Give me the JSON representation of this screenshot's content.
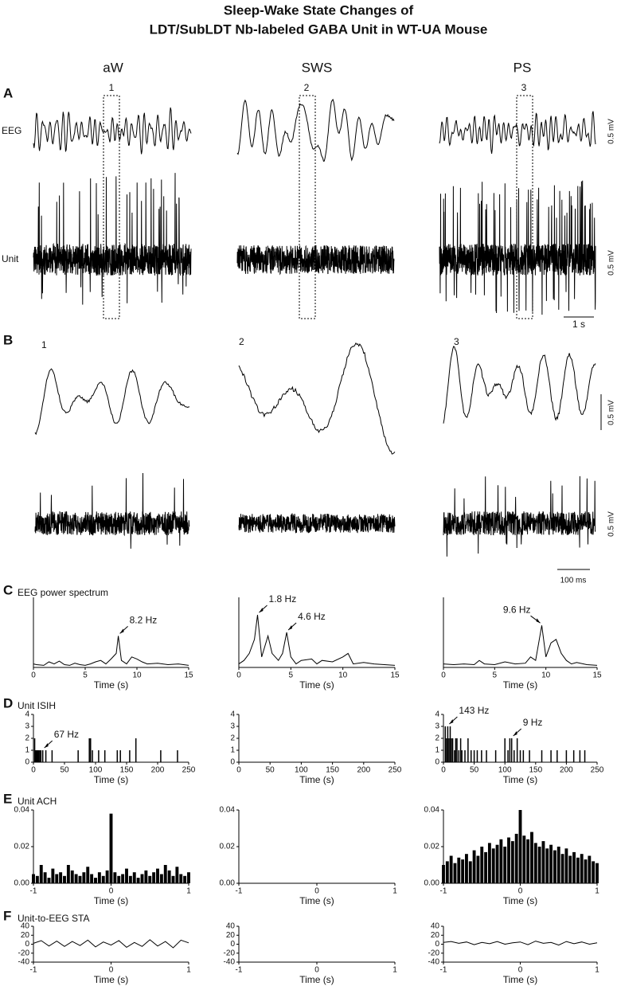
{
  "figure": {
    "title": "Sleep-Wake State Changes of",
    "subtitle": "LDT/SubLDT Nb-labeled GABA Unit in WT-UA Mouse",
    "states": [
      "aW",
      "SWS",
      "PS"
    ],
    "epochs": [
      "1",
      "2",
      "3"
    ],
    "panel_a": {
      "letter": "A",
      "rows": [
        "EEG",
        "Unit"
      ],
      "eeg_scale": "0.5 mV",
      "unit_scale": "0.5 mV",
      "time_scale": "1 s"
    },
    "panel_b": {
      "letter": "B",
      "eeg_scale": "0.5 mV",
      "unit_scale": "0.5 mV",
      "time_scale": "100 ms"
    },
    "row_panels": [
      {
        "letter": "C",
        "title": "EEG power spectrum"
      },
      {
        "letter": "D",
        "title": "Unit ISIH"
      },
      {
        "letter": "E",
        "title": "Unit ACH"
      },
      {
        "letter": "F",
        "title": "Unit-to-EEG STA"
      }
    ]
  },
  "chart_data": [
    {
      "type": "line",
      "color": "#000000",
      "xlabel": "Time (s)",
      "xlim": [
        0,
        15
      ],
      "xticks": [
        0,
        5,
        10,
        15
      ],
      "ylim": [
        0,
        1
      ],
      "x": [
        0,
        0.3,
        1,
        1.5,
        2,
        2.5,
        3,
        3.5,
        4,
        4.5,
        5,
        5.5,
        6,
        6.5,
        7,
        7.5,
        8,
        8.2,
        8.5,
        9,
        9.5,
        10,
        10.5,
        11,
        12,
        13,
        14,
        15
      ],
      "values": [
        0.05,
        0.04,
        0.03,
        0.08,
        0.05,
        0.09,
        0.04,
        0.03,
        0.06,
        0.04,
        0.03,
        0.05,
        0.08,
        0.1,
        0.05,
        0.12,
        0.2,
        0.45,
        0.1,
        0.05,
        0.15,
        0.12,
        0.08,
        0.05,
        0.06,
        0.04,
        0.05,
        0.03
      ],
      "annotations": [
        {
          "text": "8.2 Hz",
          "x": 8.2,
          "y": 0.45
        }
      ]
    },
    {
      "type": "line",
      "color": "#000000",
      "xlabel": "Time (s)",
      "xlim": [
        0,
        15
      ],
      "xticks": [
        0,
        5,
        10,
        15
      ],
      "ylim": [
        0,
        1
      ],
      "x": [
        0,
        0.5,
        1,
        1.5,
        1.8,
        2.2,
        2.8,
        3.2,
        3.8,
        4.2,
        4.6,
        5,
        5.5,
        6,
        7,
        7.5,
        8,
        9,
        10,
        10.5,
        11,
        12,
        13,
        14,
        15
      ],
      "values": [
        0.05,
        0.1,
        0.2,
        0.4,
        0.75,
        0.15,
        0.45,
        0.2,
        0.1,
        0.2,
        0.5,
        0.15,
        0.05,
        0.1,
        0.12,
        0.05,
        0.1,
        0.08,
        0.15,
        0.2,
        0.05,
        0.07,
        0.05,
        0.04,
        0.03
      ],
      "annotations": [
        {
          "text": "1.8 Hz",
          "x": 1.8,
          "y": 0.75
        },
        {
          "text": "4.6 Hz",
          "x": 4.6,
          "y": 0.5
        }
      ]
    },
    {
      "type": "line",
      "color": "#000000",
      "xlabel": "Time (s)",
      "xlim": [
        0,
        15
      ],
      "xticks": [
        0,
        5,
        10,
        15
      ],
      "ylim": [
        0,
        1
      ],
      "x": [
        0,
        1,
        2,
        3,
        3.5,
        4,
        5,
        6,
        7,
        8,
        8.5,
        9,
        9.6,
        10,
        10.5,
        11,
        11.5,
        12,
        12.5,
        13,
        14,
        15
      ],
      "values": [
        0.05,
        0.04,
        0.05,
        0.04,
        0.1,
        0.05,
        0.04,
        0.08,
        0.05,
        0.06,
        0.15,
        0.1,
        0.6,
        0.15,
        0.35,
        0.4,
        0.2,
        0.1,
        0.05,
        0.07,
        0.04,
        0.03
      ],
      "annotations": [
        {
          "text": "9.6 Hz",
          "x": 9.6,
          "y": 0.6
        }
      ]
    },
    {
      "type": "bar",
      "color": "#000000",
      "xlabel": "Time (s)",
      "xlim": [
        0,
        250
      ],
      "xticks": [
        0,
        50,
        100,
        150,
        200,
        250
      ],
      "ylim": [
        0,
        4
      ],
      "yticks": [
        0,
        1,
        2,
        3,
        4
      ],
      "x": [
        2,
        3,
        4,
        5,
        6,
        7,
        8,
        10,
        12,
        15,
        20,
        30,
        72,
        90,
        92,
        95,
        105,
        115,
        135,
        140,
        155,
        165,
        205,
        232
      ],
      "values": [
        2,
        1,
        1,
        1,
        1,
        1,
        1,
        1,
        1,
        1,
        1,
        1,
        1,
        2,
        2,
        1,
        1,
        1,
        1,
        1,
        1,
        2,
        1,
        1
      ],
      "annotations": [
        {
          "text": "67 Hz",
          "x": 15,
          "y": 1
        }
      ]
    },
    {
      "type": "bar",
      "color": "#000000",
      "xlabel": "Time (s)",
      "xlim": [
        0,
        250
      ],
      "xticks": [
        0,
        50,
        100,
        150,
        200,
        250
      ],
      "ylim": [
        0,
        4
      ],
      "yticks": [
        0,
        1,
        2,
        3,
        4
      ],
      "x": [],
      "values": []
    },
    {
      "type": "bar",
      "color": "#000000",
      "xlabel": "Time (s)",
      "xlim": [
        0,
        250
      ],
      "xticks": [
        0,
        50,
        100,
        150,
        200,
        250
      ],
      "ylim": [
        0,
        4
      ],
      "yticks": [
        0,
        1,
        2,
        3,
        4
      ],
      "x": [
        3,
        5,
        7,
        9,
        11,
        13,
        15,
        18,
        20,
        22,
        25,
        28,
        30,
        35,
        40,
        45,
        50,
        55,
        62,
        70,
        85,
        100,
        105,
        108,
        111,
        115,
        120,
        125,
        130,
        140,
        160,
        175,
        185,
        200,
        212,
        222,
        230
      ],
      "values": [
        3,
        2,
        3,
        2,
        3,
        2,
        2,
        1,
        2,
        2,
        1,
        2,
        1,
        1,
        2,
        1,
        1,
        1,
        1,
        1,
        1,
        2,
        1,
        2,
        2,
        1,
        2,
        1,
        1,
        1,
        1,
        1,
        1,
        1,
        1,
        1,
        1
      ],
      "annotations": [
        {
          "text": "143 Hz",
          "x": 7,
          "y": 3
        },
        {
          "text": "9 Hz",
          "x": 111,
          "y": 2
        }
      ]
    },
    {
      "type": "bar",
      "color": "#000000",
      "xlabel": "Time (s)",
      "xlim": [
        -1,
        1
      ],
      "xticks": [
        -1,
        0,
        1
      ],
      "ylim": [
        0,
        0.04
      ],
      "yticks": [
        {
          "value": 0,
          "label": "0.00"
        },
        0.02,
        0.04
      ],
      "x": [
        -1,
        -0.95,
        -0.9,
        -0.85,
        -0.8,
        -0.75,
        -0.7,
        -0.65,
        -0.6,
        -0.55,
        -0.5,
        -0.45,
        -0.4,
        -0.35,
        -0.3,
        -0.25,
        -0.2,
        -0.15,
        -0.1,
        -0.05,
        0,
        0.05,
        0.1,
        0.15,
        0.2,
        0.25,
        0.3,
        0.35,
        0.4,
        0.45,
        0.5,
        0.55,
        0.6,
        0.65,
        0.7,
        0.75,
        0.8,
        0.85,
        0.9,
        0.95,
        1
      ],
      "values": [
        0.005,
        0.004,
        0.01,
        0.006,
        0.003,
        0.008,
        0.005,
        0.006,
        0.004,
        0.01,
        0.007,
        0.005,
        0.004,
        0.006,
        0.009,
        0.005,
        0.003,
        0.006,
        0.004,
        0.007,
        0.038,
        0.006,
        0.004,
        0.005,
        0.008,
        0.004,
        0.006,
        0.003,
        0.005,
        0.007,
        0.004,
        0.006,
        0.008,
        0.005,
        0.01,
        0.007,
        0.004,
        0.009,
        0.005,
        0.004,
        0.006
      ]
    },
    {
      "type": "bar",
      "color": "#000000",
      "xlabel": "Time (s)",
      "xlim": [
        -1,
        1
      ],
      "xticks": [
        -1,
        0,
        1
      ],
      "ylim": [
        0,
        0.04
      ],
      "yticks": [
        {
          "value": 0,
          "label": "0.00"
        },
        0.02,
        0.04
      ],
      "x": [],
      "values": []
    },
    {
      "type": "bar",
      "color": "#000000",
      "xlabel": "Time (s)",
      "xlim": [
        -1,
        1
      ],
      "xticks": [
        -1,
        0,
        1
      ],
      "ylim": [
        0,
        0.04
      ],
      "yticks": [
        {
          "value": 0,
          "label": "0.00"
        },
        0.02,
        0.04
      ],
      "x": [
        -1,
        -0.95,
        -0.9,
        -0.85,
        -0.8,
        -0.75,
        -0.7,
        -0.65,
        -0.6,
        -0.55,
        -0.5,
        -0.45,
        -0.4,
        -0.35,
        -0.3,
        -0.25,
        -0.2,
        -0.15,
        -0.1,
        -0.05,
        0,
        0.05,
        0.1,
        0.15,
        0.2,
        0.25,
        0.3,
        0.35,
        0.4,
        0.45,
        0.5,
        0.55,
        0.6,
        0.65,
        0.7,
        0.75,
        0.8,
        0.85,
        0.9,
        0.95,
        1
      ],
      "values": [
        0.01,
        0.012,
        0.015,
        0.011,
        0.014,
        0.013,
        0.016,
        0.012,
        0.018,
        0.015,
        0.02,
        0.017,
        0.022,
        0.019,
        0.021,
        0.024,
        0.02,
        0.025,
        0.023,
        0.027,
        0.04,
        0.026,
        0.024,
        0.028,
        0.022,
        0.02,
        0.023,
        0.019,
        0.021,
        0.018,
        0.02,
        0.016,
        0.019,
        0.015,
        0.017,
        0.014,
        0.016,
        0.013,
        0.015,
        0.012,
        0.011
      ]
    },
    {
      "type": "line",
      "color": "#000000",
      "xlabel": "Time (s)",
      "xlim": [
        -1,
        1
      ],
      "xticks": [
        -1,
        0,
        1
      ],
      "ylim": [
        -40,
        40
      ],
      "yticks": [
        -40,
        -20,
        0,
        20,
        40
      ],
      "x": [
        -1,
        -0.9,
        -0.8,
        -0.7,
        -0.6,
        -0.5,
        -0.4,
        -0.3,
        -0.2,
        -0.1,
        0,
        0.1,
        0.2,
        0.3,
        0.4,
        0.5,
        0.6,
        0.7,
        0.8,
        0.9,
        1
      ],
      "values": [
        2,
        8,
        -4,
        7,
        -5,
        6,
        -3,
        9,
        -6,
        5,
        -2,
        8,
        -7,
        4,
        -5,
        10,
        -4,
        6,
        -8,
        9,
        3
      ]
    },
    {
      "type": "line",
      "color": "#000000",
      "xlabel": "Time (s)",
      "xlim": [
        -1,
        1
      ],
      "xticks": [
        -1,
        0,
        1
      ],
      "ylim": [
        -40,
        40
      ],
      "yticks": [
        -40,
        -20,
        0,
        20,
        40
      ],
      "x": [],
      "values": []
    },
    {
      "type": "line",
      "color": "#000000",
      "xlabel": "Time (s)",
      "xlim": [
        -1,
        1
      ],
      "xticks": [
        -1,
        0,
        1
      ],
      "ylim": [
        -40,
        40
      ],
      "yticks": [
        -40,
        -20,
        0,
        20,
        40
      ],
      "x": [
        -1,
        -0.9,
        -0.8,
        -0.7,
        -0.6,
        -0.5,
        -0.4,
        -0.3,
        -0.2,
        -0.1,
        0,
        0.1,
        0.2,
        0.3,
        0.4,
        0.5,
        0.6,
        0.7,
        0.8,
        0.9,
        1
      ],
      "values": [
        4,
        6,
        2,
        5,
        -1,
        4,
        1,
        6,
        0,
        3,
        5,
        -1,
        7,
        2,
        4,
        -2,
        6,
        1,
        5,
        0,
        3
      ]
    }
  ]
}
